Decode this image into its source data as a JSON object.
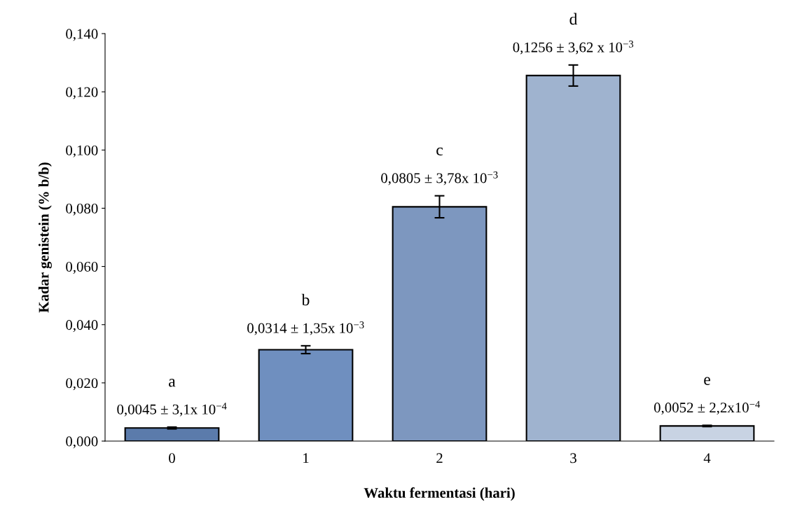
{
  "chart_data": {
    "type": "bar",
    "xlabel": "Waktu fermentasi (hari)",
    "ylabel": "Kadar genistein (% b/b)",
    "categories": [
      "0",
      "1",
      "2",
      "3",
      "4"
    ],
    "values": [
      0.0045,
      0.0314,
      0.0805,
      0.1256,
      0.0052
    ],
    "errors": [
      0.00031,
      0.00135,
      0.00378,
      0.00362,
      0.00022
    ],
    "colors": [
      "#5b7bab",
      "#6f8fbf",
      "#7d97bf",
      "#9fb3cf",
      "#c8d3e3"
    ],
    "value_labels": [
      "0,0045 ± 3,1x 10$^{−4}$",
      "0,0314 ± 1,35x 10$^{−3}$",
      "0,0805 ± 3,78x 10$^{−3}$",
      "0,1256 ± 3,62 x 10$^{−3}$",
      "0,0052 ± 2,2x10$^{−4}$"
    ],
    "annotations": [
      "a",
      "b",
      "c",
      "d",
      "e"
    ],
    "ylim": [
      0,
      0.14
    ],
    "yticks": [
      {
        "value": 0,
        "label": "0,000"
      },
      {
        "value": 0.02,
        "label": "0,020"
      },
      {
        "value": 0.04,
        "label": "0,040"
      },
      {
        "value": 0.06,
        "label": "0,060"
      },
      {
        "value": 0.08,
        "label": "0,080"
      },
      {
        "value": 0.1,
        "label": "0,100"
      },
      {
        "value": 0.12,
        "label": "0,120"
      },
      {
        "value": 0.14,
        "label": "0,140"
      }
    ],
    "grid": false,
    "legend": false
  }
}
